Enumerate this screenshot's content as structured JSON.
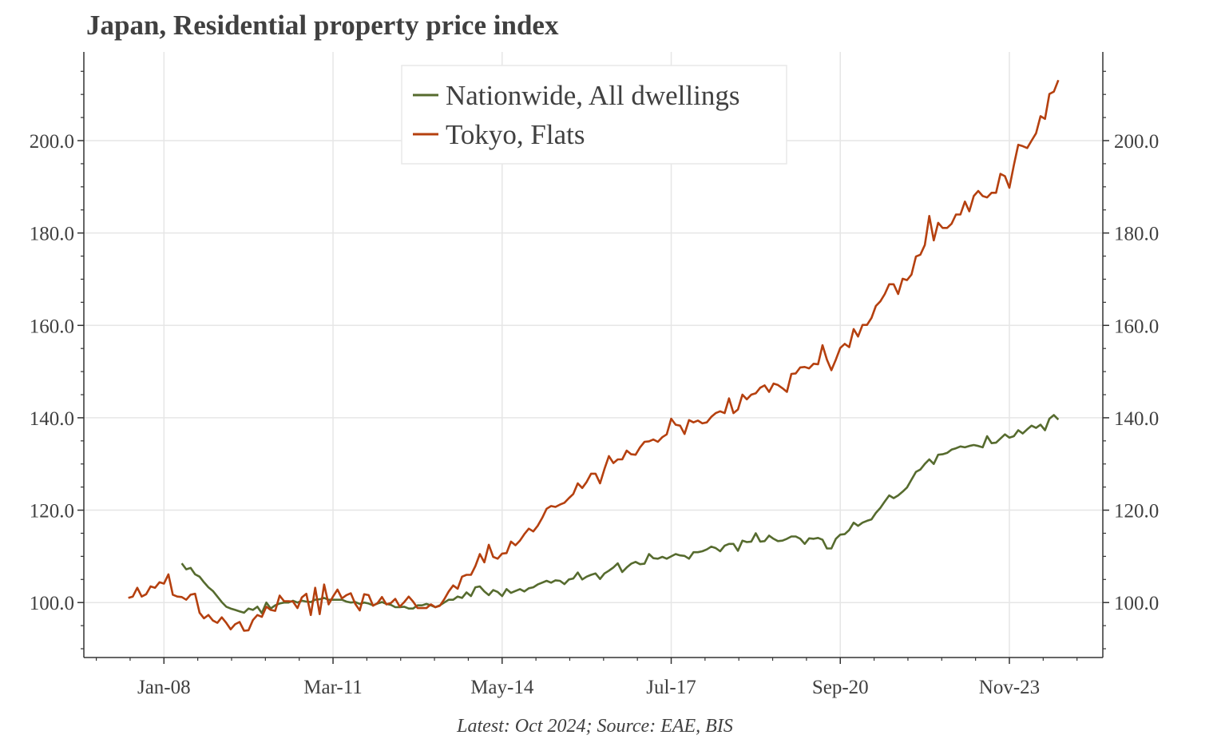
{
  "chart_data": {
    "type": "line",
    "title": "Japan, Residential property price index",
    "source": "Latest: Oct 2024; Source: EAE, BIS",
    "xlabel": "",
    "ylabel": "",
    "frequency": "monthly",
    "xlim": [
      "2006-07",
      "2025-08"
    ],
    "ylim": [
      88.1,
      219.2
    ],
    "yticks": [
      100,
      120,
      140,
      160,
      180,
      200
    ],
    "ytick_labels": [
      "100.0",
      "120.0",
      "140.0",
      "160.0",
      "180.0",
      "200.0"
    ],
    "yminor_step": 5,
    "xticks": [
      {
        "date": "2008-01",
        "label": "Jan-08"
      },
      {
        "date": "2011-03",
        "label": "Mar-11"
      },
      {
        "date": "2014-05",
        "label": "May-14"
      },
      {
        "date": "2017-07",
        "label": "Jul-17"
      },
      {
        "date": "2020-09",
        "label": "Sep-20"
      },
      {
        "date": "2023-11",
        "label": "Nov-23"
      }
    ],
    "grid": true,
    "legend_position": "top-center",
    "series": [
      {
        "name": "Nationwide, All dwellings",
        "color": "#566b2e",
        "start": "2008-05",
        "values": [
          108.5,
          107.2,
          107.5,
          106.1,
          105.6,
          104.4,
          103.3,
          102.5,
          101.3,
          100.1,
          99.1,
          98.7,
          98.4,
          98.1,
          97.8,
          98.7,
          98.4,
          99.1,
          97.7,
          100.0,
          98.7,
          99.4,
          99.8,
          100.0,
          100.0,
          100.4,
          100.0,
          100.4,
          100.2,
          100.1,
          100.6,
          100.7,
          101.0,
          100.6,
          100.6,
          100.6,
          100.6,
          100.2,
          100.0,
          100.1,
          99.7,
          100.0,
          99.8,
          99.4,
          99.8,
          100.1,
          99.7,
          99.5,
          99.0,
          99.0,
          99.1,
          98.7,
          98.7,
          99.4,
          99.4,
          99.7,
          99.4,
          99.0,
          99.4,
          100.0,
          100.6,
          100.6,
          101.3,
          101.0,
          102.2,
          101.4,
          103.3,
          103.5,
          102.4,
          101.6,
          102.7,
          102.3,
          101.4,
          102.9,
          102.1,
          102.5,
          102.9,
          102.4,
          103.1,
          103.3,
          103.9,
          104.3,
          104.7,
          104.3,
          104.8,
          104.7,
          104.0,
          105.0,
          105.2,
          106.5,
          105.0,
          105.6,
          106.0,
          106.3,
          105.1,
          106.3,
          106.9,
          107.6,
          108.5,
          106.6,
          107.6,
          108.4,
          108.8,
          108.3,
          108.4,
          110.5,
          109.6,
          109.5,
          109.9,
          109.5,
          110.0,
          110.5,
          110.2,
          110.1,
          109.5,
          110.9,
          110.9,
          111.1,
          111.5,
          112.1,
          111.8,
          111.1,
          112.3,
          112.7,
          112.7,
          111.2,
          113.4,
          113.1,
          113.2,
          115.0,
          113.2,
          113.3,
          114.5,
          113.8,
          113.3,
          113.4,
          113.8,
          114.3,
          114.3,
          113.8,
          112.7,
          113.9,
          113.8,
          114.0,
          113.6,
          111.7,
          111.7,
          113.8,
          114.7,
          114.8,
          115.7,
          117.3,
          116.6,
          117.3,
          117.7,
          118.0,
          119.4,
          120.5,
          121.9,
          123.2,
          122.6,
          123.2,
          124.0,
          124.9,
          126.6,
          128.3,
          128.8,
          130.0,
          131.0,
          130.0,
          132.0,
          132.1,
          132.4,
          133.1,
          133.4,
          133.8,
          133.6,
          133.9,
          134.1,
          133.9,
          133.6,
          136.0,
          134.5,
          134.6,
          135.5,
          136.4,
          135.7,
          136.0,
          137.3,
          136.6,
          137.5,
          138.3,
          137.8,
          138.5,
          137.3,
          139.8,
          140.6,
          139.6
        ]
      },
      {
        "name": "Tokyo, Flats",
        "color": "#b5400f",
        "start": "2007-05",
        "values": [
          101.0,
          101.3,
          103.2,
          101.3,
          101.8,
          103.5,
          103.2,
          104.4,
          104.1,
          106.1,
          101.7,
          101.3,
          101.2,
          100.6,
          101.7,
          101.9,
          97.8,
          96.6,
          97.3,
          96.1,
          95.6,
          96.8,
          95.6,
          94.2,
          95.3,
          95.8,
          93.9,
          94.0,
          96.2,
          97.3,
          96.9,
          99.1,
          98.4,
          98.2,
          101.5,
          100.3,
          100.3,
          100.2,
          98.8,
          101.1,
          101.9,
          97.3,
          103.2,
          97.5,
          103.9,
          99.6,
          101.3,
          102.8,
          100.9,
          101.6,
          102.0,
          99.7,
          98.3,
          101.8,
          101.6,
          99.3,
          99.9,
          101.2,
          99.6,
          99.9,
          100.8,
          99.1,
          100.1,
          101.3,
          100.2,
          98.8,
          98.8,
          98.8,
          99.6,
          99.0,
          99.3,
          100.7,
          102.4,
          103.7,
          103.0,
          105.6,
          106.0,
          106.0,
          107.9,
          110.5,
          108.7,
          112.5,
          109.9,
          109.5,
          110.6,
          110.7,
          113.2,
          112.4,
          113.4,
          114.8,
          116.0,
          115.4,
          116.6,
          118.3,
          120.3,
          120.9,
          120.7,
          121.2,
          121.6,
          122.6,
          123.5,
          125.8,
          124.8,
          126.1,
          127.9,
          127.9,
          125.8,
          128.9,
          131.7,
          130.2,
          131.0,
          131.0,
          132.9,
          132.1,
          132.0,
          133.6,
          134.8,
          134.9,
          135.3,
          134.8,
          135.8,
          136.4,
          139.8,
          138.5,
          138.3,
          136.5,
          139.5,
          139.0,
          139.4,
          138.8,
          139.0,
          140.2,
          141.0,
          141.4,
          141.0,
          144.2,
          141.0,
          141.8,
          145.0,
          144.0,
          145.0,
          145.3,
          146.5,
          147.0,
          145.6,
          147.4,
          147.1,
          146.4,
          145.6,
          149.5,
          149.6,
          150.9,
          151.0,
          150.7,
          151.7,
          151.6,
          155.7,
          152.6,
          150.3,
          152.6,
          155.1,
          156.0,
          155.3,
          159.2,
          157.6,
          160.1,
          160.1,
          161.6,
          164.2,
          165.2,
          166.8,
          168.9,
          168.9,
          166.8,
          170.1,
          169.8,
          171.0,
          174.9,
          175.3,
          177.4,
          183.7,
          178.4,
          182.2,
          181.1,
          181.1,
          182.0,
          184.0,
          184.0,
          186.8,
          184.7,
          188.0,
          189.1,
          188.0,
          187.7,
          188.7,
          188.7,
          192.8,
          192.3,
          189.8,
          194.7,
          199.1,
          198.8,
          198.4,
          200.0,
          201.6,
          205.3,
          204.7,
          210.1,
          210.6,
          213.1
        ]
      }
    ]
  }
}
